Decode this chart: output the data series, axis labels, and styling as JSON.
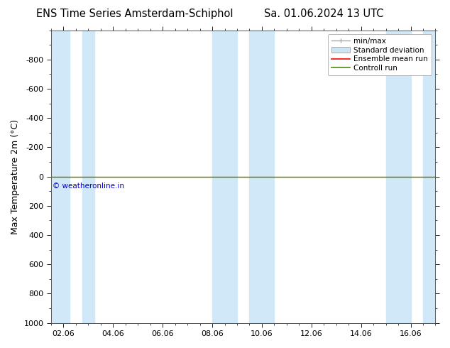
{
  "title_left": "ENS Time Series Amsterdam-Schiphol",
  "title_right": "Sa. 01.06.2024 13 UTC",
  "ylabel": "Max Temperature 2m (°C)",
  "watermark": "© weatheronline.in",
  "xlim": [
    1.5,
    17.0
  ],
  "ylim": [
    1000,
    -1000
  ],
  "yticks": [
    -800,
    -600,
    -400,
    -200,
    0,
    200,
    400,
    600,
    800,
    1000
  ],
  "xticks": [
    2,
    4,
    6,
    8,
    10,
    12,
    14,
    16
  ],
  "xticklabels": [
    "02.06",
    "04.06",
    "06.06",
    "08.06",
    "10.06",
    "12.06",
    "14.06",
    "16.06"
  ],
  "shaded_bands": [
    [
      1.5,
      2.25
    ],
    [
      2.75,
      3.25
    ],
    [
      8.0,
      9.0
    ],
    [
      9.5,
      10.5
    ],
    [
      15.0,
      16.0
    ],
    [
      16.5,
      17.0
    ]
  ],
  "shade_color": "#d0e8f8",
  "ensemble_mean_color": "#ff0000",
  "control_run_color": "#4c8c00",
  "legend_entries": [
    "min/max",
    "Standard deviation",
    "Ensemble mean run",
    "Controll run"
  ],
  "legend_line_color": "#aaaaaa",
  "legend_shade_color": "#cce5f5",
  "bg_color": "#ffffff",
  "font_family": "DejaVu Sans",
  "title_fontsize": 10.5,
  "axis_fontsize": 9,
  "tick_fontsize": 8,
  "watermark_color": "#0000cc"
}
